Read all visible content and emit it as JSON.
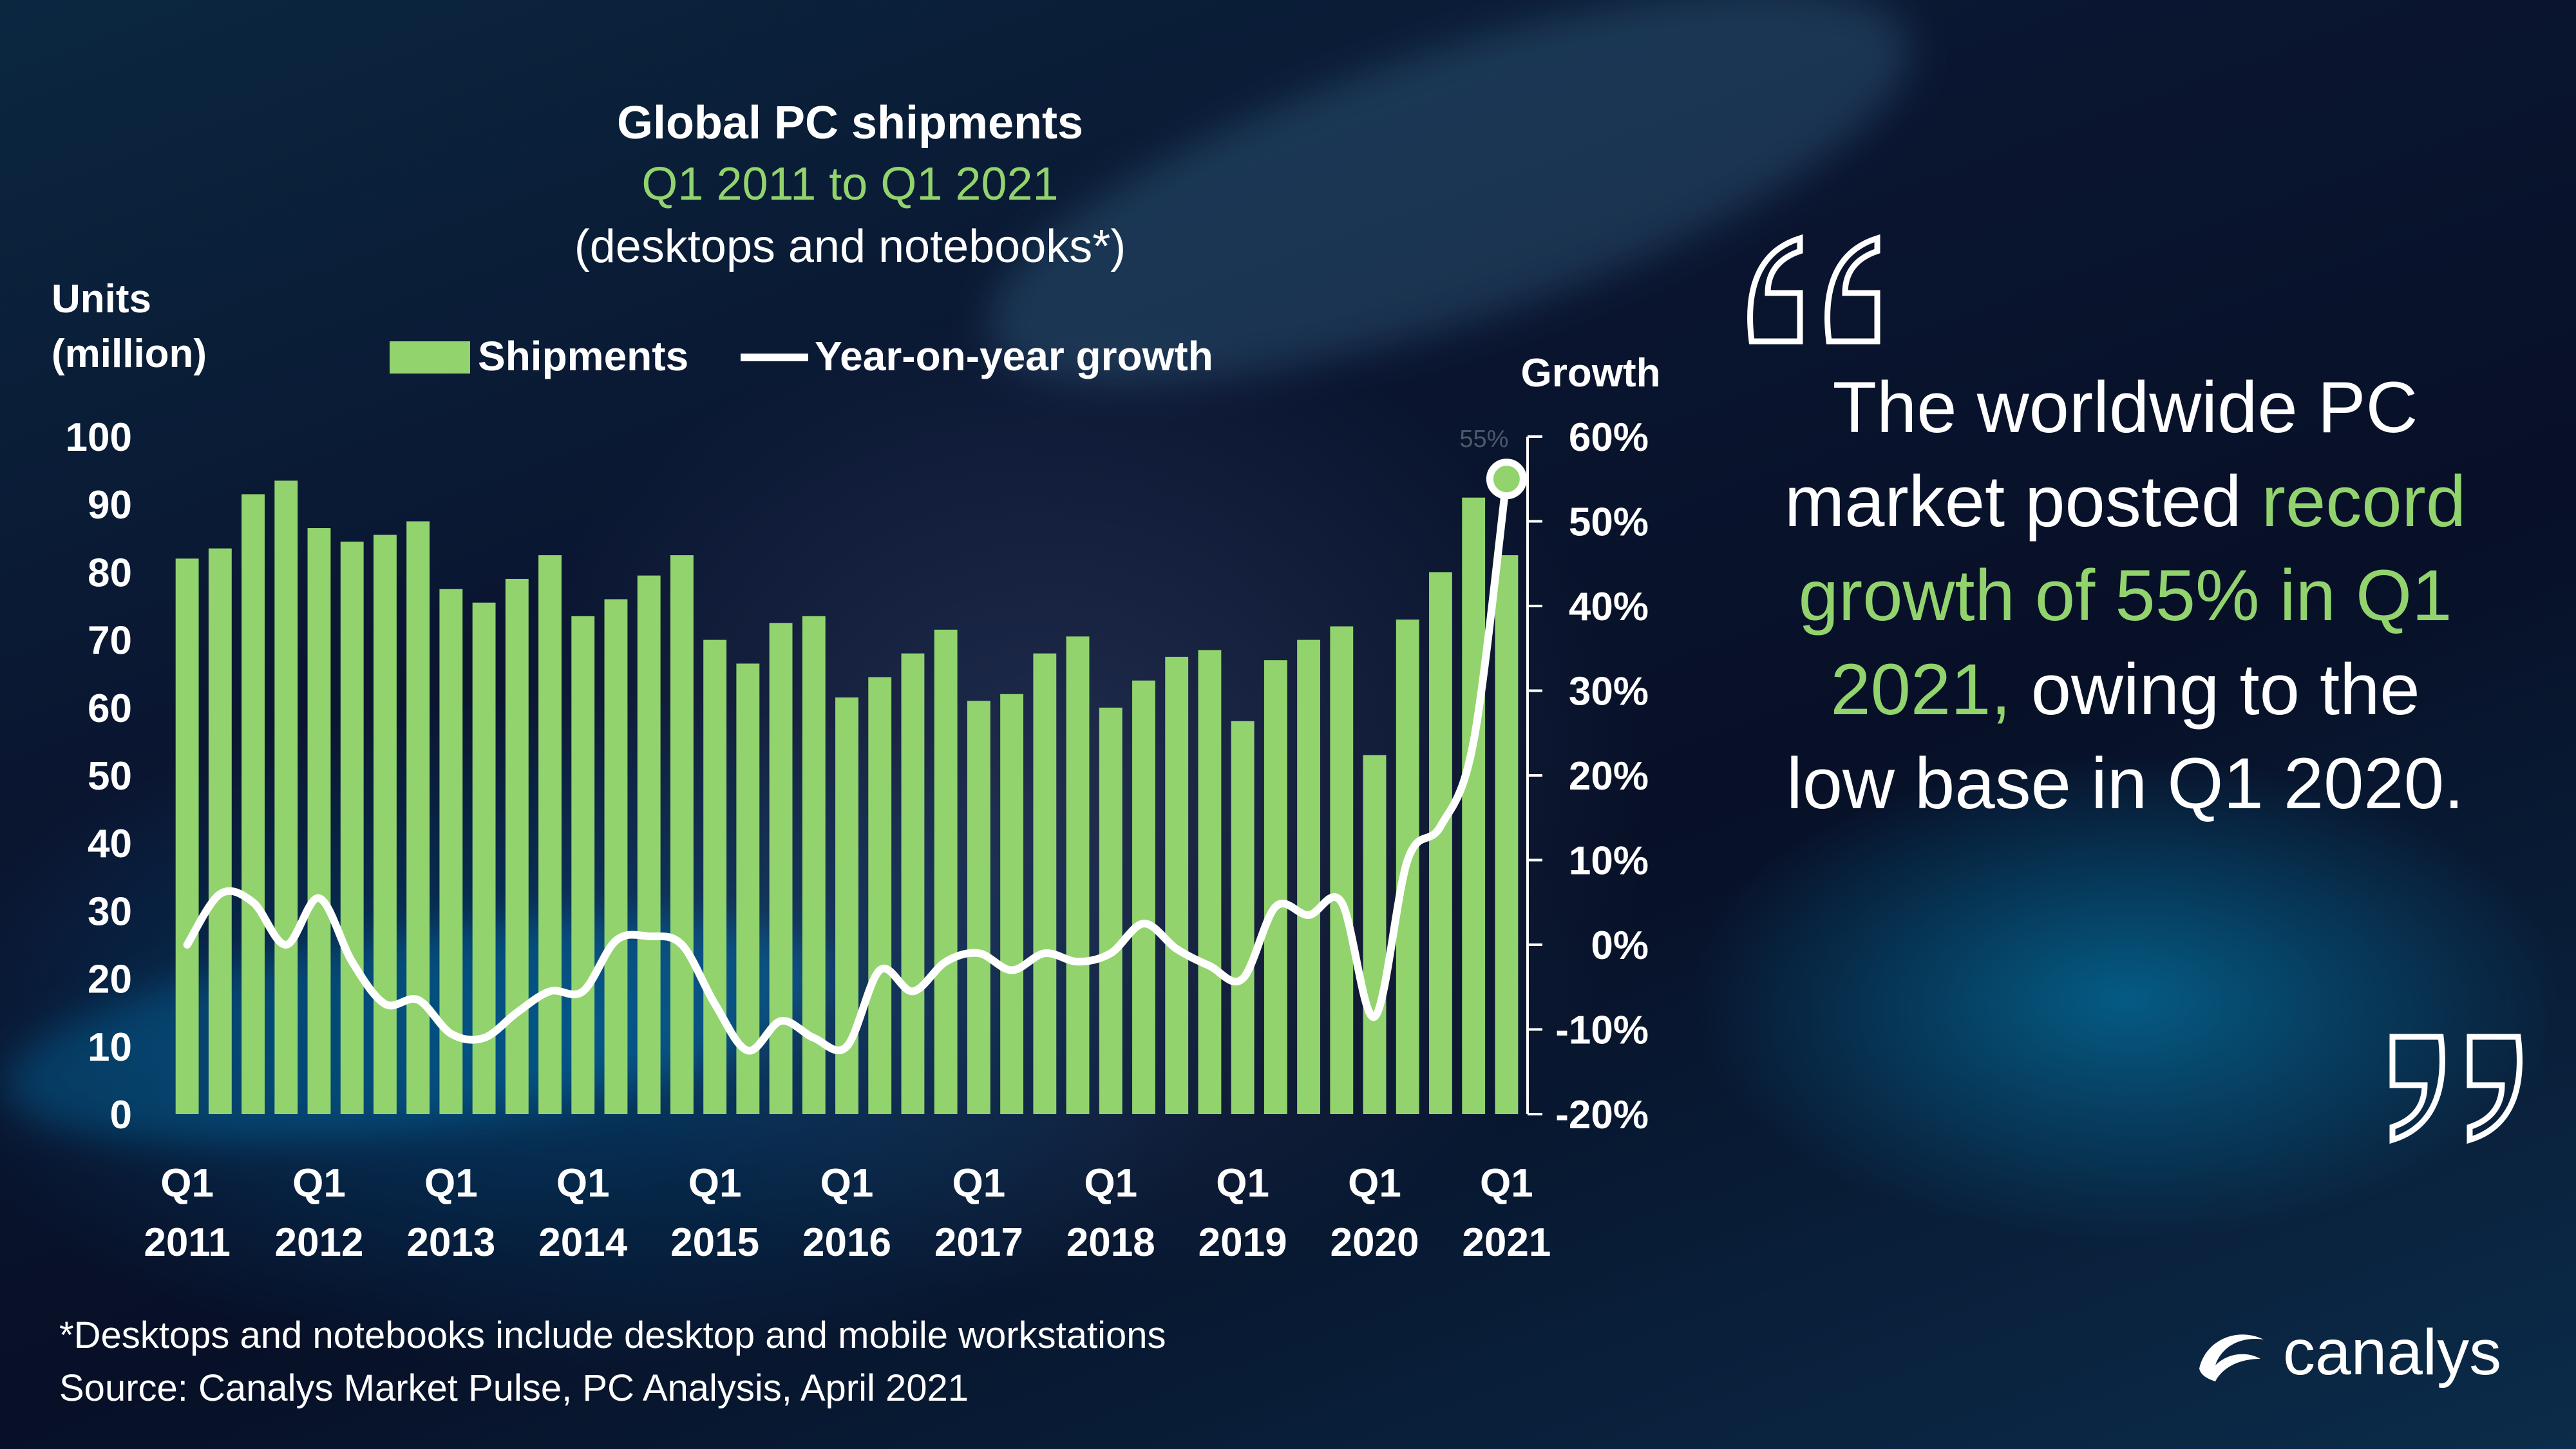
{
  "colors": {
    "bar": "#92d36e",
    "line": "#ffffff",
    "highlight": "#92d36e",
    "text": "#ffffff"
  },
  "title": {
    "line1": "Global PC shipments",
    "line2": "Q1 2011 to Q1 2021",
    "line3": "(desktops and notebooks*)"
  },
  "quote": {
    "part1": "The worldwide PC market posted ",
    "highlight": "record growth of 55% in Q1 2021,",
    "part2": " owing to the low base in Q1 2020."
  },
  "footnote": "*Desktops and notebooks include desktop and mobile workstations",
  "source": "Source: Canalys Market Pulse, PC Analysis, April 2021",
  "logo": {
    "text": "canalys",
    "icon": "canalys-swoosh-icon"
  },
  "chart_data": {
    "type": "bar",
    "title": "Global PC shipments",
    "ylabel": "Units (million)",
    "y2label": "Growth",
    "ylim": [
      0,
      100
    ],
    "y2lim": [
      -20,
      60
    ],
    "yticks": [
      "0",
      "10",
      "20",
      "30",
      "40",
      "50",
      "60",
      "70",
      "80",
      "90",
      "100"
    ],
    "y2ticks": [
      "-20%",
      "-10%",
      "0%",
      "10%",
      "20%",
      "30%",
      "40%",
      "50%",
      "60%"
    ],
    "legend": {
      "bars": "Shipments",
      "line": "Year-on-year growth",
      "position": "top"
    },
    "xticks": [
      {
        "index": 0,
        "q": "Q1",
        "year": "2011"
      },
      {
        "index": 4,
        "q": "Q1",
        "year": "2012"
      },
      {
        "index": 8,
        "q": "Q1",
        "year": "2013"
      },
      {
        "index": 12,
        "q": "Q1",
        "year": "2014"
      },
      {
        "index": 16,
        "q": "Q1",
        "year": "2015"
      },
      {
        "index": 20,
        "q": "Q1",
        "year": "2016"
      },
      {
        "index": 24,
        "q": "Q1",
        "year": "2017"
      },
      {
        "index": 28,
        "q": "Q1",
        "year": "2018"
      },
      {
        "index": 32,
        "q": "Q1",
        "year": "2019"
      },
      {
        "index": 36,
        "q": "Q1",
        "year": "2020"
      },
      {
        "index": 40,
        "q": "Q1",
        "year": "2021"
      }
    ],
    "series": [
      {
        "name": "Shipments",
        "axis": "left",
        "values": [
          82,
          83.5,
          91.5,
          93.5,
          86.5,
          84.5,
          85.5,
          87.5,
          77.5,
          75.5,
          79,
          82.5,
          73.5,
          76,
          79.5,
          82.5,
          70,
          66.5,
          72.5,
          73.5,
          61.5,
          64.5,
          68,
          71.5,
          61,
          62,
          68,
          70.5,
          60,
          64,
          67.5,
          68.5,
          58,
          67,
          70,
          72,
          53,
          73,
          80,
          91,
          82.5
        ]
      },
      {
        "name": "Year-on-year growth",
        "axis": "right",
        "values": [
          0,
          6,
          5,
          0,
          5.5,
          -2,
          -7,
          -6.5,
          -10.5,
          -11,
          -8,
          -5.5,
          -5.5,
          0.5,
          1,
          0,
          -7,
          -12.5,
          -9,
          -11,
          -12,
          -3,
          -5.5,
          -2,
          -1,
          -3,
          -1,
          -2,
          -1,
          2.5,
          -0.5,
          -2.5,
          -4,
          4.5,
          3.5,
          5,
          -8.5,
          10,
          14,
          24,
          55
        ]
      }
    ],
    "annotation": {
      "label": "55%",
      "index": 40
    }
  }
}
